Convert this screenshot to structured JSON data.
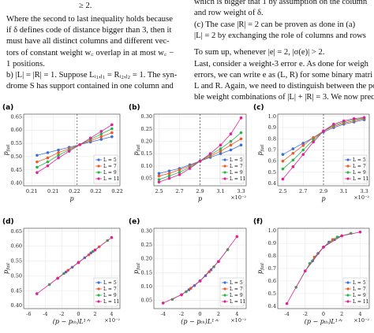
{
  "text_blocks": {
    "top": "≥ 2.",
    "left": [
      "Where the second to last inequality holds because",
      "if δ defines code of distance bigger than 3, then it",
      "must have all distinct columns and different vec-",
      "tors of constant weight w꜀ overlap in at most w꜀ −",
      "1 positions.",
      "b)  |L| = |R| = 1. Suppose Lᵢ₁,ⱼ₁ = Rᵢ₂,ⱼ₂ = 1. The syn-",
      "drome S has support contained in one column and"
    ],
    "right": [
      "which is bigger that 1 by assumption on the column",
      "and row weight of δ.",
      "(c)  The case |R| = 2 can be proven as done in (a)",
      "|L| = 2 by exchanging the role of columns and rows",
      "To sum up, whenever |e| = 2, |σ(e)| > 2.",
      "Last, consider a weight-3 error e. As done for weigh",
      "errors, we can write e as (L, R) for some binary matri",
      "L and R. Again, we need to distinguish between the pos",
      "ble weight combinations of |L| + |R| = 3. We now prec"
    ]
  },
  "chart_data": [
    {
      "type": "line",
      "label": "(a)",
      "xlabel": "p",
      "ylabel": "p",
      "ylabel_sub": "fail",
      "legend": "lower right",
      "threshold_x": 0.2165,
      "x": [
        0.209,
        0.211,
        0.213,
        0.215,
        0.217,
        0.219,
        0.221,
        0.223
      ],
      "xlim": [
        0.2065,
        0.2245
      ],
      "xticks": [
        {
          "value": 0.208,
          "label": "0.21"
        },
        {
          "value": 0.212,
          "label": "0.21"
        },
        {
          "value": 0.216,
          "label": "0.22"
        },
        {
          "value": 0.22,
          "label": "0.22"
        },
        {
          "value": 0.224,
          "label": "0.22"
        }
      ],
      "ylim": [
        0.39,
        0.66
      ],
      "yticks": [
        {
          "value": 0.4,
          "label": "0.40"
        },
        0.45,
        {
          "value": 0.5,
          "label": "0.50"
        },
        0.55,
        {
          "value": 0.6,
          "label": "0.60"
        },
        0.65
      ],
      "series": [
        {
          "name": "L = 5",
          "color": "#3b6fd8",
          "values": [
            0.505,
            0.515,
            0.525,
            0.535,
            0.545,
            0.555,
            0.565,
            0.575
          ]
        },
        {
          "name": "L = 7",
          "color": "#f05a28",
          "values": [
            0.48,
            0.495,
            0.515,
            0.53,
            0.545,
            0.56,
            0.575,
            0.59
          ]
        },
        {
          "name": "L = 9",
          "color": "#2cb34a",
          "values": [
            0.46,
            0.48,
            0.505,
            0.525,
            0.545,
            0.565,
            0.585,
            0.605
          ]
        },
        {
          "name": "L = 11",
          "color": "#e0209a",
          "values": [
            0.44,
            0.465,
            0.495,
            0.52,
            0.545,
            0.57,
            0.595,
            0.62
          ]
        }
      ]
    },
    {
      "type": "line",
      "label": "(b)",
      "xlabel": "p",
      "ylabel": "p",
      "ylabel_sub": "fail",
      "multiplier": "×10⁻²",
      "legend": "lower right",
      "threshold_x": 2.9,
      "x": [
        2.5,
        2.6,
        2.7,
        2.8,
        2.9,
        3.0,
        3.1,
        3.2,
        3.3
      ],
      "xlim": [
        2.45,
        3.35
      ],
      "xticks": [
        2.5,
        2.7,
        2.9,
        3.1,
        3.3
      ],
      "ylim": [
        0.02,
        0.31
      ],
      "yticks": [
        0.05,
        {
          "value": 0.1,
          "label": "0.10"
        },
        0.15,
        {
          "value": 0.2,
          "label": "0.20"
        },
        0.25,
        {
          "value": 0.3,
          "label": "0.30"
        }
      ],
      "series": [
        {
          "name": "L = 5",
          "color": "#3b6fd8",
          "values": [
            0.07,
            0.08,
            0.09,
            0.105,
            0.12,
            0.135,
            0.15,
            0.165,
            0.185
          ]
        },
        {
          "name": "L = 7",
          "color": "#f05a28",
          "values": [
            0.06,
            0.07,
            0.085,
            0.1,
            0.12,
            0.14,
            0.16,
            0.185,
            0.21
          ]
        },
        {
          "name": "L = 9",
          "color": "#2cb34a",
          "values": [
            0.045,
            0.06,
            0.075,
            0.095,
            0.12,
            0.145,
            0.17,
            0.2,
            0.235
          ]
        },
        {
          "name": "L = 11",
          "color": "#e0209a",
          "values": [
            0.035,
            0.05,
            0.065,
            0.09,
            0.12,
            0.15,
            0.185,
            0.23,
            0.295
          ]
        }
      ]
    },
    {
      "type": "line",
      "label": "(c)",
      "xlabel": "p",
      "ylabel": "p",
      "ylabel_sub": "fail",
      "multiplier": "×10⁻²",
      "legend": "lower right",
      "threshold_x": 2.9,
      "x": [
        2.5,
        2.6,
        2.7,
        2.8,
        2.9,
        3.0,
        3.1,
        3.2,
        3.3
      ],
      "xlim": [
        2.45,
        3.35
      ],
      "xticks": [
        2.5,
        2.7,
        2.9,
        3.1,
        3.3
      ],
      "ylim": [
        0.38,
        1.02
      ],
      "yticks": [
        0.4,
        0.5,
        0.6,
        0.7,
        0.8,
        0.9,
        {
          "value": 1,
          "label": "1.0"
        }
      ],
      "series": [
        {
          "name": "L = 5",
          "color": "#3b6fd8",
          "values": [
            0.66,
            0.71,
            0.76,
            0.81,
            0.86,
            0.9,
            0.93,
            0.95,
            0.97
          ]
        },
        {
          "name": "L = 7",
          "color": "#f05a28",
          "values": [
            0.6,
            0.67,
            0.74,
            0.81,
            0.87,
            0.91,
            0.94,
            0.96,
            0.98
          ]
        },
        {
          "name": "L = 9",
          "color": "#2cb34a",
          "values": [
            0.53,
            0.61,
            0.7,
            0.79,
            0.87,
            0.92,
            0.95,
            0.97,
            0.985
          ]
        },
        {
          "name": "L = 11",
          "color": "#e0209a",
          "values": [
            0.44,
            0.55,
            0.66,
            0.77,
            0.87,
            0.93,
            0.96,
            0.98,
            0.99
          ]
        }
      ]
    },
    {
      "type": "line",
      "label": "(d)",
      "xlabel": "(p − pₜₕ)L¹ᐟᵛ",
      "ylabel": "p",
      "ylabel_sub": "fail",
      "multiplier": "×10⁻²",
      "legend": "lower right",
      "xlim": [
        -6.6,
        5
      ],
      "xticks": [
        -6,
        -4,
        -2,
        0,
        2,
        4
      ],
      "ylim": [
        0.39,
        0.66
      ],
      "yticks": [
        {
          "value": 0.4,
          "label": "0.40"
        },
        0.45,
        {
          "value": 0.5,
          "label": "0.50"
        },
        0.55,
        {
          "value": 0.6,
          "label": "0.60"
        },
        0.65
      ],
      "series": [
        {
          "name": "L = 5",
          "color": "#3b6fd8",
          "x": [
            -1.5,
            -0.75,
            0,
            0.75,
            1.5
          ],
          "values": [
            0.513,
            0.529,
            0.545,
            0.561,
            0.577
          ]
        },
        {
          "name": "L = 7",
          "color": "#f05a28",
          "x": [
            -2.5,
            -1.25,
            0,
            1.25,
            2.5
          ],
          "values": [
            0.492,
            0.519,
            0.545,
            0.571,
            0.598
          ]
        },
        {
          "name": "L = 9",
          "color": "#2cb34a",
          "x": [
            -3.5,
            -1.75,
            0,
            1.75,
            3.5
          ],
          "values": [
            0.471,
            0.508,
            0.545,
            0.582,
            0.619
          ]
        },
        {
          "name": "L = 11",
          "color": "#e0209a",
          "x": [
            -5,
            -2.5,
            0,
            2,
            4
          ],
          "values": [
            0.44,
            0.492,
            0.545,
            0.587,
            0.629
          ]
        }
      ]
    },
    {
      "type": "line",
      "label": "(e)",
      "xlabel": "(p − pₜₕ)L¹ᐟᵛ",
      "ylabel": "p",
      "ylabel_sub": "fail",
      "multiplier": "×10⁻²",
      "legend": "lower right",
      "xlim": [
        -5,
        5
      ],
      "xticks": [
        -4,
        -2,
        0,
        2,
        4
      ],
      "ylim": [
        0.02,
        0.31
      ],
      "yticks": [
        0.05,
        {
          "value": 0.1,
          "label": "0.10"
        },
        0.15,
        {
          "value": 0.2,
          "label": "0.20"
        },
        0.25,
        {
          "value": 0.3,
          "label": "0.30"
        }
      ],
      "series": [
        {
          "name": "L = 5",
          "color": "#3b6fd8",
          "x": [
            -1.2,
            -0.6,
            0,
            0.6,
            1.2
          ],
          "values": [
            0.088,
            0.103,
            0.12,
            0.139,
            0.16
          ]
        },
        {
          "name": "L = 7",
          "color": "#f05a28",
          "x": [
            -2,
            -1,
            0,
            1,
            2
          ],
          "values": [
            0.07,
            0.093,
            0.12,
            0.153,
            0.19
          ]
        },
        {
          "name": "L = 9",
          "color": "#2cb34a",
          "x": [
            -3,
            -1.5,
            0,
            1.5,
            3
          ],
          "values": [
            0.053,
            0.081,
            0.12,
            0.171,
            0.233
          ]
        },
        {
          "name": "L = 11",
          "color": "#e0209a",
          "x": [
            -4,
            -2,
            0,
            2,
            4
          ],
          "values": [
            0.04,
            0.07,
            0.12,
            0.19,
            0.28
          ]
        }
      ]
    },
    {
      "type": "line",
      "label": "(f)",
      "xlabel": "(p − pₜₕ)L¹ᐟᵛ",
      "ylabel": "p",
      "ylabel_sub": "fail",
      "multiplier": "×10⁻²",
      "legend": "lower right",
      "xlim": [
        -5,
        5
      ],
      "xticks": [
        -4,
        -2,
        0,
        2,
        4
      ],
      "ylim": [
        0.38,
        1.02
      ],
      "yticks": [
        0.4,
        0.5,
        0.6,
        0.7,
        0.8,
        0.9,
        {
          "value": 1,
          "label": "1.0"
        }
      ],
      "series": [
        {
          "name": "L = 5",
          "color": "#3b6fd8",
          "x": [
            -1.2,
            -0.6,
            0,
            0.6,
            1.2
          ],
          "values": [
            0.76,
            0.82,
            0.87,
            0.91,
            0.93
          ]
        },
        {
          "name": "L = 7",
          "color": "#f05a28",
          "x": [
            -2,
            -1,
            0,
            1,
            2
          ],
          "values": [
            0.68,
            0.79,
            0.87,
            0.93,
            0.96
          ]
        },
        {
          "name": "L = 9",
          "color": "#2cb34a",
          "x": [
            -3,
            -1.5,
            0,
            1.5,
            3
          ],
          "values": [
            0.55,
            0.74,
            0.87,
            0.95,
            0.98
          ]
        },
        {
          "name": "L = 11",
          "color": "#e0209a",
          "x": [
            -4,
            -2,
            0,
            2,
            4
          ],
          "values": [
            0.42,
            0.68,
            0.87,
            0.96,
            0.99
          ]
        }
      ]
    }
  ]
}
